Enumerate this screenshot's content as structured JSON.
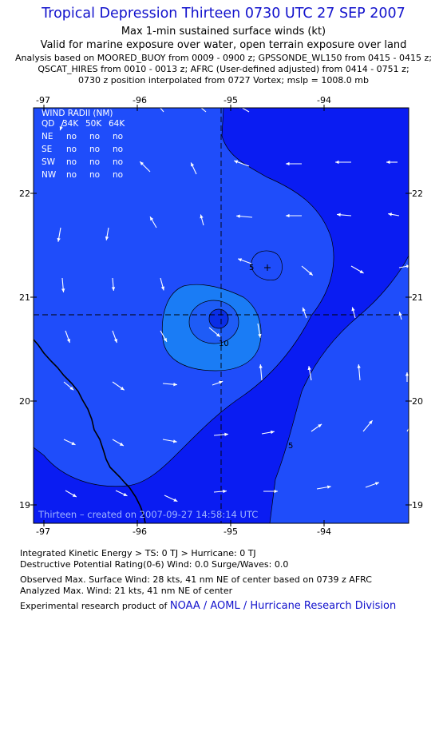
{
  "header": {
    "title": "Tropical Depression Thirteen 0730 UTC 27 SEP 2007",
    "subtitle1": "Max 1-min sustained surface winds (kt)",
    "subtitle2": "Valid for marine exposure over water, open terrain exposure over land",
    "analysis1": "Analysis based on  MOORED_BUOY from 0009 - 0900 z;  GPSSONDE_WL150 from 0415 - 0415 z;",
    "analysis2": "QSCAT_HIRES from 0010 - 0013 z;  AFRC (User-defined adjusted) from 0414 - 0751 z;",
    "analysis3": "0730 z position interpolated from 0727 Vortex; mslp = 1008.0 mb"
  },
  "map": {
    "lon_ticks": [
      "-97",
      "-96",
      "-95",
      "-94"
    ],
    "lat_ticks": [
      "22",
      "21",
      "20",
      "19"
    ],
    "credit": "Thirteen  –  created on 2007-09-27  14:58:14 UTC",
    "contour_labels": [
      "10",
      "5",
      "5"
    ],
    "colors": {
      "background": "#0a1cf2",
      "outer_region": "#1f4dfa",
      "inner_region": "#1a7cf5",
      "core": "#1e5cf6",
      "center": "#0a2ee6",
      "coast": "#000000",
      "arrows": "#ffffff"
    }
  },
  "wind_radii": {
    "title": "WIND RADII (NM)",
    "columns": [
      "QD",
      "34K",
      "50K",
      "64K"
    ],
    "rows": [
      {
        "qd": "NE",
        "v34": "no",
        "v50": "no",
        "v64": "no"
      },
      {
        "qd": "SE",
        "v34": "no",
        "v50": "no",
        "v64": "no"
      },
      {
        "qd": "SW",
        "v34": "no",
        "v50": "no",
        "v64": "no"
      },
      {
        "qd": "NW",
        "v34": "no",
        "v50": "no",
        "v64": "no"
      }
    ]
  },
  "footer": {
    "ike": "Integrated Kinetic Energy > TS: 0 TJ   > Hurricane: 0 TJ",
    "dpr": "Destructive Potential Rating(0-6)   Wind: 0.0 Surge/Waves: 0.0",
    "observed": "Observed Max. Surface Wind: 28 kts, 41 nm NE of center based on 0739 z AFRC",
    "analyzed": "Analyzed Max. Wind: 21 kts, 41 nm NE of center",
    "product_prefix": "Experimental research product of",
    "product_link": "NOAA / AOML / Hurricane Research Division"
  }
}
